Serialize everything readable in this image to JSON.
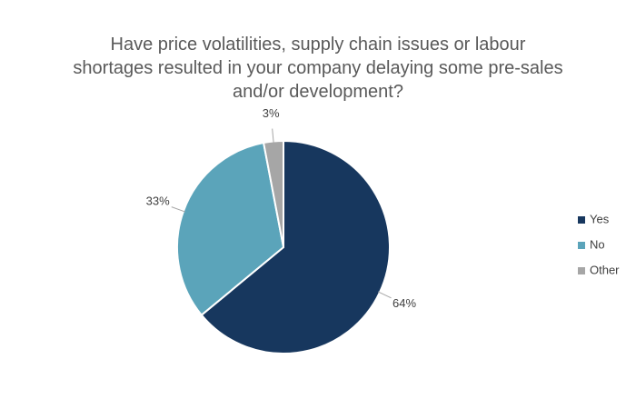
{
  "chart_data": {
    "type": "pie",
    "title": "Have price volatilities, supply chain issues or labour shortages resulted in your company delaying some pre-sales and/or development?",
    "categories": [
      "Yes",
      "No",
      "Other"
    ],
    "values": [
      64,
      33,
      3
    ],
    "value_labels": [
      "64%",
      "33%",
      "3%"
    ],
    "colors": [
      "#17375e",
      "#5ba4ba",
      "#a6a6a6"
    ],
    "legend": "right"
  }
}
